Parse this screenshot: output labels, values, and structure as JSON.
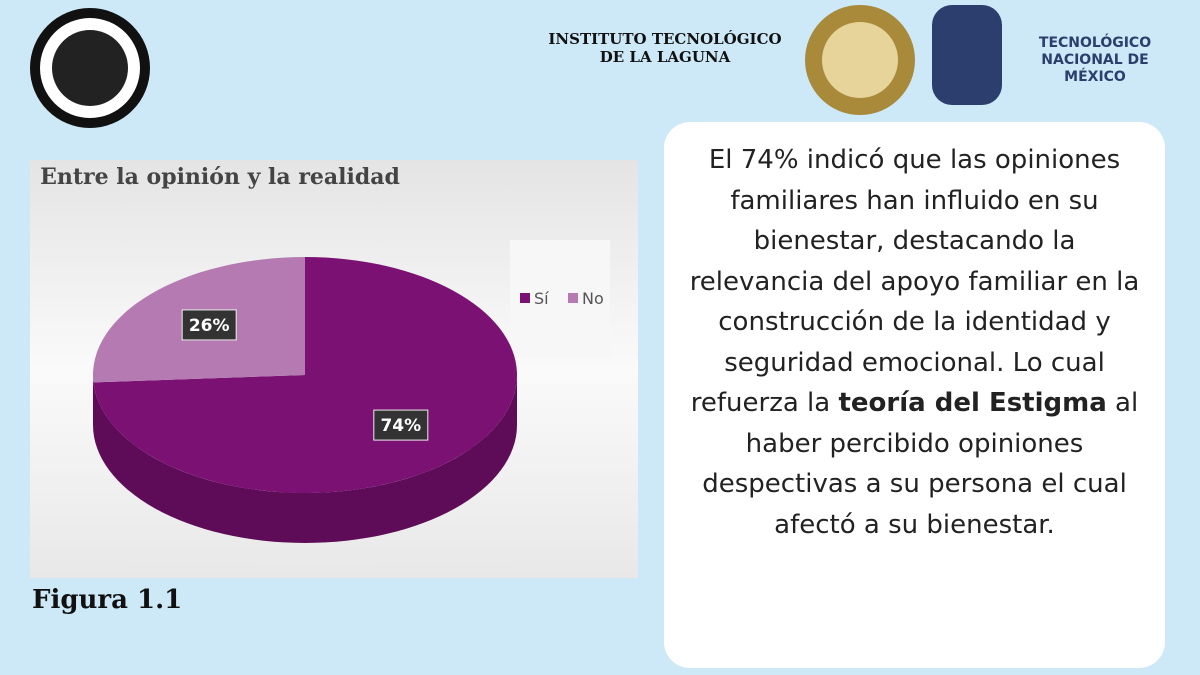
{
  "header": {
    "institute": "INSTITUTO TECNOLÓGICO DE LA LAGUNA",
    "tecnm": "TECNOLÓGICO NACIONAL DE MÉXICO"
  },
  "chart_data": {
    "type": "pie",
    "title": "Entre la opinión y la realidad",
    "categories": [
      "Sí",
      "No"
    ],
    "values": [
      74,
      26
    ],
    "value_labels": [
      "74%",
      "26%"
    ],
    "colors": [
      "#7b1273",
      "#b57ab1"
    ],
    "legend": "right"
  },
  "caption": "Figura 1.1",
  "paragraph": [
    "El 74% indicó que las opiniones familiares han influido en su bienestar, destacando la relevancia del apoyo familiar en la construcción de la identidad y seguridad emocional. Lo cual refuerza la ",
    "teoría del Estigma",
    " al haber percibido opiniones despectivas a su persona el cual afectó a su bienestar."
  ]
}
